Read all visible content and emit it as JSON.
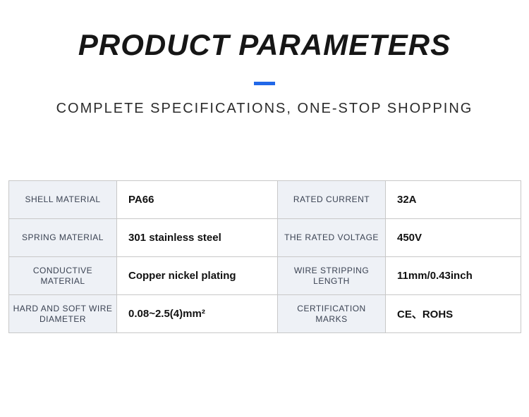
{
  "header": {
    "title": "PRODUCT PARAMETERS",
    "subtitle": "COMPLETE SPECIFICATIONS, ONE-STOP SHOPPING"
  },
  "colors": {
    "accent": "#2168e8",
    "label_bg": "#eef1f6",
    "border": "#c8c8c8",
    "title_color": "#161616",
    "subtitle_color": "#2b2b2b"
  },
  "specs": {
    "rows": [
      {
        "l1": "SHELL MATERIAL",
        "v1": "PA66",
        "l2": "RATED CURRENT",
        "v2": "32A"
      },
      {
        "l1": "SPRING MATERIAL",
        "v1": "301 stainless steel",
        "l2": "THE RATED VOLTAGE",
        "v2": "450V"
      },
      {
        "l1": "CONDUCTIVE MATERIAL",
        "v1": "Copper nickel plating",
        "l2": "WIRE STRIPPING LENGTH",
        "v2": "11mm/0.43inch"
      },
      {
        "l1": "HARD AND SOFT WIRE DIAMETER",
        "v1": "0.08~2.5(4)mm²",
        "l2": "CERTIFICATION MARKS",
        "v2": "CE、ROHS"
      }
    ]
  }
}
